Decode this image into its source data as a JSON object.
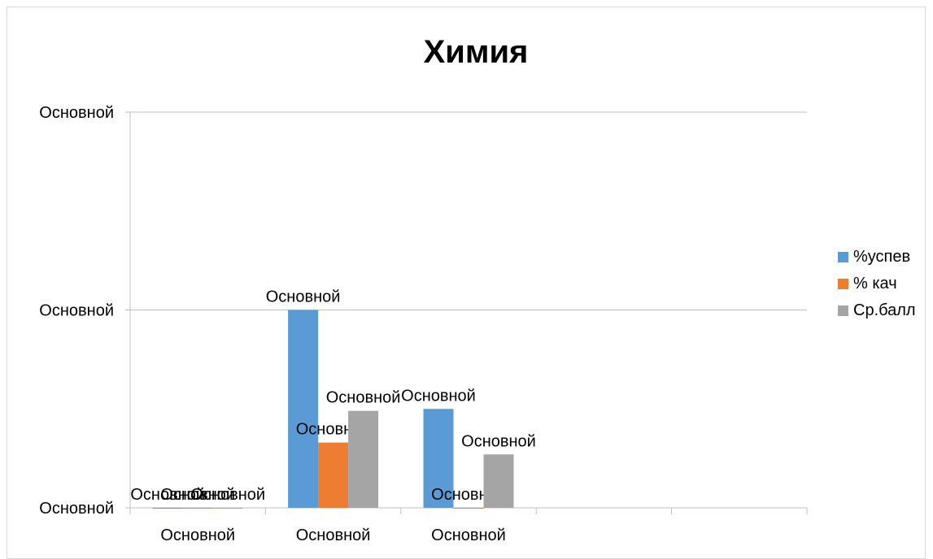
{
  "chart_data": {
    "type": "bar",
    "title": "Химия",
    "categories": [
      "Основной",
      "Основной",
      "Основной",
      "",
      ""
    ],
    "series": [
      {
        "name": "%успев",
        "color": "#5b9bd5",
        "values": [
          0,
          100,
          50,
          null,
          null
        ],
        "labels": [
          "Основной",
          "Основной",
          "Основной",
          "",
          ""
        ]
      },
      {
        "name": "% кач",
        "color": "#ed7d31",
        "values": [
          0,
          33,
          0,
          null,
          null
        ],
        "labels": [
          "Основной",
          "Основной",
          "Основной",
          "",
          ""
        ]
      },
      {
        "name": "Ср.балл",
        "color": "#a5a5a5",
        "values": [
          0,
          49,
          27,
          null,
          null
        ],
        "labels": [
          "Основной",
          "Основной",
          "Основной",
          "",
          ""
        ]
      }
    ],
    "y_tick_labels": [
      "Основной",
      "Основной",
      "Основной"
    ],
    "ylim": [
      0,
      200
    ],
    "y_ticks": [
      0,
      100,
      200
    ],
    "grid": true,
    "legend_position": "right"
  }
}
